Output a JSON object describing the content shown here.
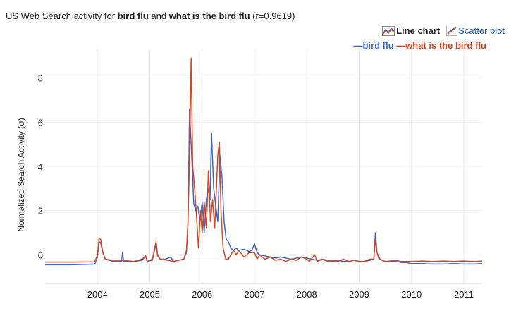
{
  "title": {
    "prefix": "US Web Search activity for ",
    "term1": "bird flu",
    "mid": " and ",
    "term2": "what is the bird flu",
    "suffix": " (r=0.9619)"
  },
  "toggles": {
    "line_label": "Line chart",
    "scatter_label": "Scatter plot"
  },
  "icons": {
    "line": "line-chart-icon",
    "scatter": "scatter-plot-icon"
  },
  "colors": {
    "series1": "#3a68cc",
    "series2": "#d9441e",
    "link": "#1a57c4"
  },
  "chart_data": {
    "type": "line",
    "title": "US Web Search activity for bird flu and what is the bird flu (r=0.9619)",
    "ylabel": "Normalized Search Activity (σ)",
    "xlabel": "",
    "x_range": [
      2003.0,
      2011.35
    ],
    "ylim": [
      -1.3,
      9.3
    ],
    "yticks": [
      0,
      2,
      4,
      6,
      8
    ],
    "xticks": [
      "2004",
      "2005",
      "2006",
      "2007",
      "2008",
      "2009",
      "2010",
      "2011"
    ],
    "grid": true,
    "legend": "top-right",
    "series": [
      {
        "name": "—bird flu",
        "color": "#3a68cc",
        "points": [
          [
            2003.0,
            -0.45
          ],
          [
            2003.5,
            -0.45
          ],
          [
            2003.95,
            -0.42
          ],
          [
            2004.0,
            -0.1
          ],
          [
            2004.03,
            0.6
          ],
          [
            2004.06,
            0.55
          ],
          [
            2004.1,
            0.1
          ],
          [
            2004.15,
            -0.2
          ],
          [
            2004.3,
            -0.3
          ],
          [
            2004.46,
            -0.3
          ],
          [
            2004.48,
            0.1
          ],
          [
            2004.5,
            -0.3
          ],
          [
            2004.7,
            -0.3
          ],
          [
            2004.85,
            -0.25
          ],
          [
            2004.92,
            -0.05
          ],
          [
            2004.95,
            -0.3
          ],
          [
            2005.05,
            -0.25
          ],
          [
            2005.12,
            0.5
          ],
          [
            2005.15,
            -0.05
          ],
          [
            2005.2,
            -0.2
          ],
          [
            2005.3,
            -0.2
          ],
          [
            2005.4,
            -0.1
          ],
          [
            2005.45,
            -0.3
          ],
          [
            2005.55,
            -0.25
          ],
          [
            2005.65,
            -0.2
          ],
          [
            2005.7,
            0.1
          ],
          [
            2005.73,
            1.5
          ],
          [
            2005.76,
            6.6
          ],
          [
            2005.8,
            4.5
          ],
          [
            2005.84,
            2.3
          ],
          [
            2005.88,
            2.0
          ],
          [
            2005.92,
            2.2
          ],
          [
            2005.96,
            1.5
          ],
          [
            2006.0,
            2.4
          ],
          [
            2006.04,
            1.0
          ],
          [
            2006.08,
            2.5
          ],
          [
            2006.12,
            3.0
          ],
          [
            2006.15,
            2.5
          ],
          [
            2006.18,
            5.5
          ],
          [
            2006.22,
            3.0
          ],
          [
            2006.26,
            2.2
          ],
          [
            2006.3,
            1.5
          ],
          [
            2006.34,
            4.5
          ],
          [
            2006.38,
            3.5
          ],
          [
            2006.42,
            1.5
          ],
          [
            2006.46,
            0.7
          ],
          [
            2006.5,
            0.6
          ],
          [
            2006.55,
            0.3
          ],
          [
            2006.6,
            0.2
          ],
          [
            2006.65,
            0.3
          ],
          [
            2006.7,
            0.2
          ],
          [
            2006.8,
            0.25
          ],
          [
            2006.9,
            0.15
          ],
          [
            2006.95,
            0.2
          ],
          [
            2007.0,
            0.5
          ],
          [
            2007.05,
            0.1
          ],
          [
            2007.1,
            0.0
          ],
          [
            2007.2,
            -0.05
          ],
          [
            2007.3,
            -0.1
          ],
          [
            2007.4,
            -0.15
          ],
          [
            2007.5,
            -0.1
          ],
          [
            2007.6,
            -0.15
          ],
          [
            2007.7,
            -0.2
          ],
          [
            2007.8,
            -0.15
          ],
          [
            2007.9,
            -0.1
          ],
          [
            2008.0,
            -0.15
          ],
          [
            2008.1,
            -0.2
          ],
          [
            2008.2,
            -0.25
          ],
          [
            2008.3,
            -0.2
          ],
          [
            2008.4,
            -0.25
          ],
          [
            2008.5,
            -0.3
          ],
          [
            2008.6,
            -0.25
          ],
          [
            2008.7,
            -0.3
          ],
          [
            2008.8,
            -0.3
          ],
          [
            2008.9,
            -0.25
          ],
          [
            2009.0,
            -0.3
          ],
          [
            2009.1,
            -0.3
          ],
          [
            2009.2,
            -0.25
          ],
          [
            2009.28,
            -0.2
          ],
          [
            2009.31,
            1.0
          ],
          [
            2009.34,
            0.1
          ],
          [
            2009.38,
            -0.2
          ],
          [
            2009.5,
            -0.3
          ],
          [
            2009.7,
            -0.3
          ],
          [
            2009.8,
            -0.35
          ],
          [
            2009.9,
            -0.35
          ],
          [
            2010.0,
            -0.4
          ],
          [
            2010.2,
            -0.4
          ],
          [
            2010.4,
            -0.42
          ],
          [
            2010.6,
            -0.42
          ],
          [
            2010.8,
            -0.4
          ],
          [
            2011.0,
            -0.42
          ],
          [
            2011.2,
            -0.42
          ],
          [
            2011.35,
            -0.4
          ]
        ]
      },
      {
        "name": "—what is the bird flu",
        "color": "#d9441e",
        "points": [
          [
            2003.0,
            -0.33
          ],
          [
            2003.5,
            -0.33
          ],
          [
            2003.95,
            -0.32
          ],
          [
            2004.0,
            0.0
          ],
          [
            2004.03,
            0.75
          ],
          [
            2004.06,
            0.7
          ],
          [
            2004.1,
            0.15
          ],
          [
            2004.15,
            -0.2
          ],
          [
            2004.3,
            -0.25
          ],
          [
            2004.5,
            -0.25
          ],
          [
            2004.7,
            -0.3
          ],
          [
            2004.85,
            -0.2
          ],
          [
            2004.92,
            -0.05
          ],
          [
            2004.95,
            -0.3
          ],
          [
            2005.05,
            -0.2
          ],
          [
            2005.12,
            0.6
          ],
          [
            2005.15,
            0.0
          ],
          [
            2005.2,
            -0.2
          ],
          [
            2005.35,
            -0.25
          ],
          [
            2005.45,
            -0.3
          ],
          [
            2005.55,
            -0.25
          ],
          [
            2005.65,
            -0.2
          ],
          [
            2005.7,
            0.2
          ],
          [
            2005.73,
            1.5
          ],
          [
            2005.76,
            4.5
          ],
          [
            2005.79,
            8.9
          ],
          [
            2005.82,
            4.0
          ],
          [
            2005.86,
            2.9
          ],
          [
            2005.9,
            1.5
          ],
          [
            2005.93,
            0.3
          ],
          [
            2005.97,
            2.0
          ],
          [
            2006.0,
            1.0
          ],
          [
            2006.04,
            2.4
          ],
          [
            2006.08,
            1.2
          ],
          [
            2006.12,
            3.8
          ],
          [
            2006.16,
            1.5
          ],
          [
            2006.2,
            2.5
          ],
          [
            2006.24,
            1.2
          ],
          [
            2006.3,
            4.5
          ],
          [
            2006.33,
            5.1
          ],
          [
            2006.36,
            2.0
          ],
          [
            2006.4,
            0.3
          ],
          [
            2006.45,
            -0.2
          ],
          [
            2006.5,
            -0.2
          ],
          [
            2006.55,
            0.0
          ],
          [
            2006.6,
            0.2
          ],
          [
            2006.65,
            0.0
          ],
          [
            2006.7,
            0.2
          ],
          [
            2006.8,
            -0.1
          ],
          [
            2006.9,
            0.1
          ],
          [
            2007.0,
            0.1
          ],
          [
            2007.05,
            -0.2
          ],
          [
            2007.1,
            0.0
          ],
          [
            2007.2,
            -0.2
          ],
          [
            2007.3,
            -0.1
          ],
          [
            2007.4,
            -0.25
          ],
          [
            2007.5,
            -0.2
          ],
          [
            2007.6,
            -0.3
          ],
          [
            2007.7,
            -0.2
          ],
          [
            2007.8,
            -0.25
          ],
          [
            2007.9,
            -0.1
          ],
          [
            2008.0,
            -0.2
          ],
          [
            2008.05,
            -0.3
          ],
          [
            2008.15,
            0.0
          ],
          [
            2008.2,
            -0.3
          ],
          [
            2008.3,
            -0.2
          ],
          [
            2008.4,
            -0.3
          ],
          [
            2008.5,
            -0.25
          ],
          [
            2008.6,
            -0.3
          ],
          [
            2008.7,
            -0.2
          ],
          [
            2008.8,
            -0.3
          ],
          [
            2008.9,
            -0.25
          ],
          [
            2009.0,
            -0.3
          ],
          [
            2009.1,
            -0.3
          ],
          [
            2009.2,
            -0.2
          ],
          [
            2009.28,
            -0.2
          ],
          [
            2009.31,
            0.7
          ],
          [
            2009.34,
            0.1
          ],
          [
            2009.4,
            -0.2
          ],
          [
            2009.5,
            -0.3
          ],
          [
            2009.7,
            -0.25
          ],
          [
            2009.8,
            -0.3
          ],
          [
            2009.9,
            -0.3
          ],
          [
            2010.0,
            -0.3
          ],
          [
            2010.2,
            -0.28
          ],
          [
            2010.4,
            -0.3
          ],
          [
            2010.6,
            -0.28
          ],
          [
            2010.8,
            -0.3
          ],
          [
            2011.0,
            -0.28
          ],
          [
            2011.2,
            -0.3
          ],
          [
            2011.35,
            -0.28
          ]
        ]
      }
    ]
  }
}
